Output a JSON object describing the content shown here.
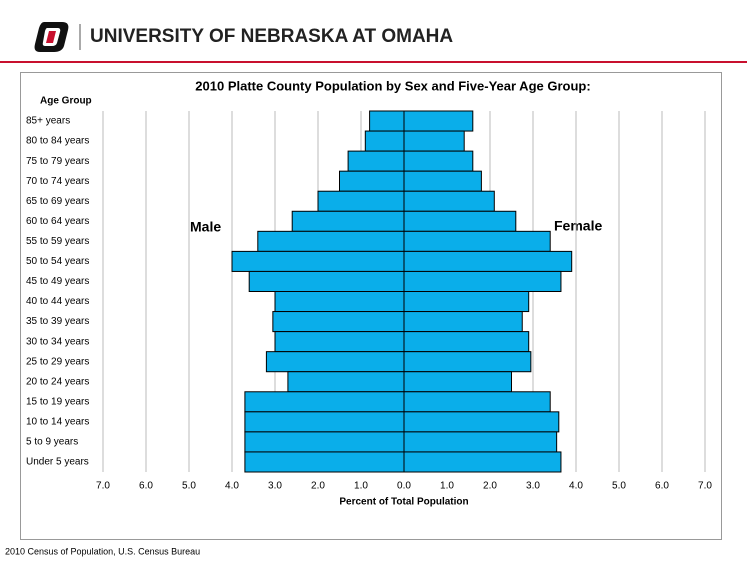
{
  "header": {
    "title": "UNIVERSITY OF NEBRASKA AT OMAHA"
  },
  "footer": {
    "source": "2010 Census of Population, U.S. Census Bureau"
  },
  "chart_data": {
    "type": "pyramid",
    "title": "2010 Platte County Population by Sex and Five-Year Age Group:",
    "y_label": "Age Group",
    "x_label": "Percent of Total Population",
    "categories": [
      "85+ years",
      "80 to 84 years",
      "75 to 79 years",
      "70 to 74 years",
      "65 to 69 years",
      "60 to 64 years",
      "55 to 59 years",
      "50 to 54 years",
      "45 to 49 years",
      "40 to 44 years",
      "35 to 39 years",
      "30 to 34 years",
      "25 to 29 years",
      "20 to 24 years",
      "15 to 19 years",
      "10 to 14 years",
      "5 to 9 years",
      "Under 5 years"
    ],
    "series": [
      {
        "name": "Male",
        "color": "#0aaeea",
        "side": "left",
        "values": [
          0.8,
          0.9,
          1.3,
          1.5,
          2.0,
          2.6,
          3.4,
          4.0,
          3.6,
          3.0,
          3.05,
          3.0,
          3.2,
          2.7,
          3.7,
          3.7,
          3.7,
          3.7
        ]
      },
      {
        "name": "Female",
        "color": "#0aaeea",
        "side": "right",
        "values": [
          1.6,
          1.4,
          1.6,
          1.8,
          2.1,
          2.6,
          3.4,
          3.9,
          3.65,
          2.9,
          2.75,
          2.9,
          2.95,
          2.5,
          3.4,
          3.6,
          3.55,
          3.65
        ]
      }
    ],
    "xlim": [
      0,
      7
    ],
    "xticks": [
      {
        "value": 0,
        "label": "0.0"
      },
      {
        "value": 1,
        "label": "1.0"
      },
      {
        "value": 2,
        "label": "2.0"
      },
      {
        "value": 3,
        "label": "3.0"
      },
      {
        "value": 4,
        "label": "4.0"
      },
      {
        "value": 5,
        "label": "5.0"
      },
      {
        "value": 6,
        "label": "6.0"
      },
      {
        "value": 7,
        "label": "7.0"
      }
    ],
    "grid": true
  }
}
